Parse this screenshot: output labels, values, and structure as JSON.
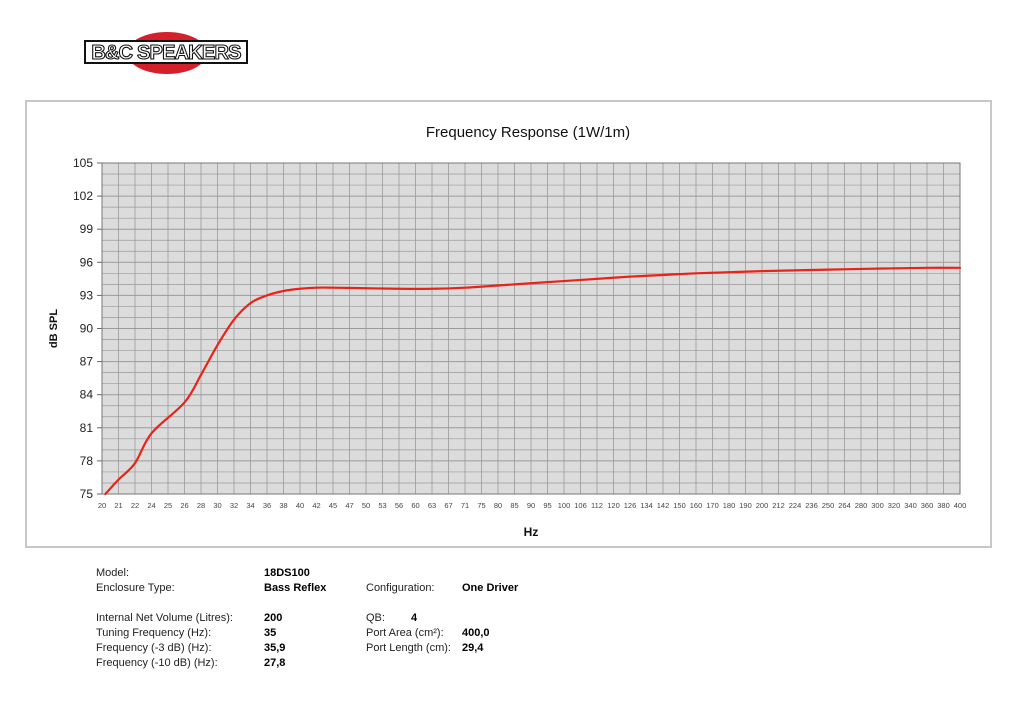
{
  "brand": {
    "logo_text": "B&C SPEAKERS"
  },
  "colors": {
    "curve": "#e8231a",
    "plot_bg": "#dcdcdc",
    "grid": "#9a9a9a",
    "logo_red": "#d3202a"
  },
  "chart_data": {
    "type": "line",
    "title": "Frequency Response (1W/1m)",
    "xlabel": "Hz",
    "ylabel": "dB SPL",
    "x_scale": "log",
    "grid": true,
    "xlim": [
      20,
      400
    ],
    "ylim": [
      75,
      105
    ],
    "x_ticks": [
      20,
      21,
      22,
      24,
      25,
      26,
      28,
      30,
      32,
      34,
      36,
      38,
      40,
      42,
      45,
      47,
      50,
      53,
      56,
      60,
      63,
      67,
      71,
      75,
      80,
      85,
      90,
      95,
      100,
      106,
      112,
      120,
      126,
      134,
      142,
      150,
      160,
      170,
      180,
      190,
      200,
      212,
      224,
      236,
      250,
      264,
      280,
      300,
      320,
      340,
      360,
      380,
      400
    ],
    "y_ticks": [
      75,
      78,
      81,
      84,
      87,
      90,
      93,
      96,
      99,
      102,
      105
    ],
    "series": [
      {
        "x": [
          20.2,
          21,
          22,
          24,
          26,
          28,
          30,
          32,
          34,
          36,
          38,
          40,
          42,
          45,
          50,
          56,
          63,
          71,
          80,
          90,
          100,
          112,
          126,
          142,
          160,
          180,
          200,
          236,
          280,
          320,
          360,
          400
        ],
        "y": [
          75.0,
          76.3,
          77.8,
          80.5,
          83.3,
          85.8,
          88.5,
          90.8,
          92.3,
          93.0,
          93.4,
          93.6,
          93.7,
          93.7,
          93.65,
          93.6,
          93.6,
          93.7,
          93.9,
          94.1,
          94.3,
          94.5,
          94.7,
          94.85,
          95.0,
          95.1,
          95.2,
          95.3,
          95.4,
          95.45,
          95.5,
          95.5
        ]
      }
    ]
  },
  "specs": {
    "model_label": "Model:",
    "model_value": "18DS100",
    "enclosure_label": "Enclosure Type:",
    "enclosure_value": "Bass Reflex",
    "configuration_label": "Configuration:",
    "configuration_value": "One Driver",
    "volume_label": "Internal Net Volume (Litres):",
    "volume_value": "200",
    "tuning_label": "Tuning Frequency (Hz):",
    "tuning_value": "35",
    "f3_label": "Frequency (-3 dB) (Hz):",
    "f3_value": "35,9",
    "f10_label": "Frequency (-10 dB) (Hz):",
    "f10_value": "27,8",
    "qb_label": "QB:",
    "qb_value": "4",
    "port_area_label": "Port Area (cm²):",
    "port_area_value": "400,0",
    "port_length_label": "Port Length (cm):",
    "port_length_value": "29,4"
  }
}
